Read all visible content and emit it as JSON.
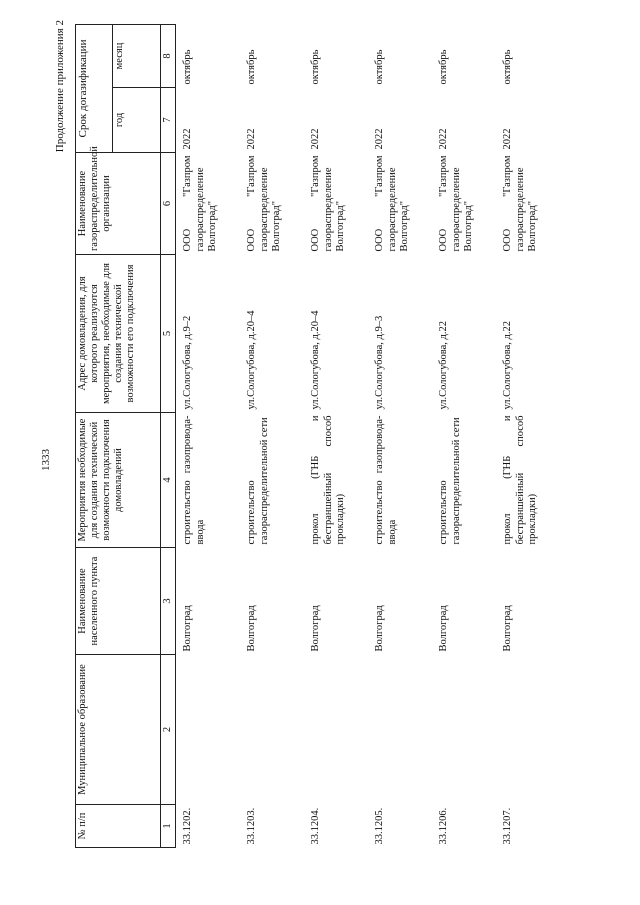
{
  "page_number": "1333",
  "continuation": "Продолжение приложения 2",
  "headers": {
    "c1": "№ п/п",
    "c2": "Муниципальное образование",
    "c3": "Наименование населенного пункта",
    "c4": "Мероприятия необходимые для создания технической возможности подключения домовладений",
    "c5": "Адрес домовладения, для которого реализуются мероприятия, необходимые для создания технической возможности его подключения",
    "c6": "Наименование газораспределительной организации",
    "c78": "Срок догазификации",
    "c7": "год",
    "c8": "месяц"
  },
  "column_numbers": [
    "1",
    "2",
    "3",
    "4",
    "5",
    "6",
    "7",
    "8"
  ],
  "rows": [
    {
      "num": "33.1202.",
      "mo": "",
      "np": "Волгоград",
      "work": "строительство газопровода-ввода",
      "addr": "ул.Сологубова, д.9–2",
      "org": "ООО \"Газпром газораспределение Волгоград\"",
      "year": "2022",
      "month": "октябрь"
    },
    {
      "num": "33.1203.",
      "mo": "",
      "np": "Волгоград",
      "work": "строительство газораспределительной сети",
      "addr": "ул.Сологубова, д.20–4",
      "org": "ООО \"Газпром газораспределение Волгоград\"",
      "year": "2022",
      "month": "октябрь"
    },
    {
      "num": "33.1204.",
      "mo": "",
      "np": "Волгоград",
      "work": "прокол (ГНБ и бестраншейный способ прокладки)",
      "addr": "ул.Сологубова, д.20–4",
      "org": "ООО \"Газпром газораспределение Волгоград\"",
      "year": "2022",
      "month": "октябрь"
    },
    {
      "num": "33.1205.",
      "mo": "",
      "np": "Волгоград",
      "work": "строительство газопровода-ввода",
      "addr": "ул.Сологубова, д.9–3",
      "org": "ООО \"Газпром газораспределение Волгоград\"",
      "year": "2022",
      "month": "октябрь"
    },
    {
      "num": "33.1206.",
      "mo": "",
      "np": "Волгоград",
      "work": "строительство газораспределительной сети",
      "addr": "ул.Сологубова, д.22",
      "org": "ООО \"Газпром газораспределение Волгоград\"",
      "year": "2022",
      "month": "октябрь"
    },
    {
      "num": "33.1207.",
      "mo": "",
      "np": "Волгоград",
      "work": "прокол (ГНБ и бестраншейный способ прокладки)",
      "addr": "ул.Сологубова, д.22",
      "org": "ООО \"Газпром газораспределение Волгоград\"",
      "year": "2022",
      "month": "октябрь"
    }
  ]
}
